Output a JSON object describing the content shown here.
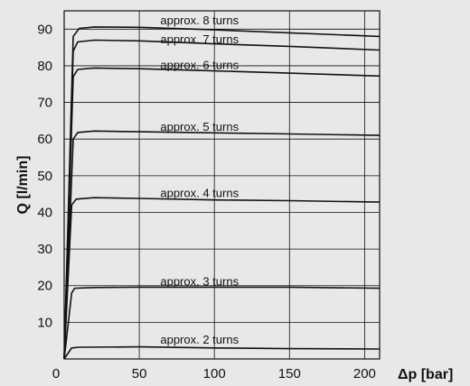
{
  "chart_data": {
    "type": "line",
    "xlabel": "Δp [bar]",
    "ylabel": "Q [l/min]",
    "xlim": [
      0,
      210
    ],
    "ylim": [
      0,
      95
    ],
    "x_ticks": [
      0,
      50,
      100,
      150,
      200
    ],
    "y_ticks": [
      10,
      20,
      30,
      40,
      50,
      60,
      70,
      80,
      90
    ],
    "grid": true,
    "series": [
      {
        "name": "approx. 2 turns",
        "points": [
          [
            0,
            0
          ],
          [
            5,
            3
          ],
          [
            10,
            3.2
          ],
          [
            50,
            3.3
          ],
          [
            100,
            3
          ],
          [
            150,
            2.8
          ],
          [
            210,
            2.7
          ]
        ]
      },
      {
        "name": "approx. 3 turns",
        "points": [
          [
            0,
            0
          ],
          [
            5,
            18
          ],
          [
            7,
            19.3
          ],
          [
            20,
            19.5
          ],
          [
            50,
            19.6
          ],
          [
            100,
            19.6
          ],
          [
            150,
            19.6
          ],
          [
            210,
            19.3
          ]
        ]
      },
      {
        "name": "approx. 4 turns",
        "points": [
          [
            0,
            0
          ],
          [
            5,
            42
          ],
          [
            8,
            43.6
          ],
          [
            20,
            44
          ],
          [
            50,
            43.8
          ],
          [
            100,
            43.4
          ],
          [
            150,
            43.2
          ],
          [
            210,
            42.8
          ]
        ]
      },
      {
        "name": "approx. 5 turns",
        "points": [
          [
            0,
            0
          ],
          [
            6,
            60
          ],
          [
            9,
            61.8
          ],
          [
            20,
            62.2
          ],
          [
            50,
            62
          ],
          [
            100,
            61.7
          ],
          [
            150,
            61.4
          ],
          [
            210,
            61
          ]
        ]
      },
      {
        "name": "approx. 6 turns",
        "points": [
          [
            0,
            0
          ],
          [
            6,
            77
          ],
          [
            9,
            79
          ],
          [
            20,
            79.4
          ],
          [
            50,
            79.2
          ],
          [
            100,
            78.6
          ],
          [
            150,
            78
          ],
          [
            210,
            77.2
          ]
        ]
      },
      {
        "name": "approx. 7 turns",
        "points": [
          [
            0,
            0
          ],
          [
            6,
            84
          ],
          [
            9,
            86.5
          ],
          [
            20,
            87
          ],
          [
            50,
            86.8
          ],
          [
            100,
            86
          ],
          [
            150,
            85.3
          ],
          [
            210,
            84.3
          ]
        ]
      },
      {
        "name": "approx. 8 turns",
        "points": [
          [
            0,
            0
          ],
          [
            6,
            88
          ],
          [
            10,
            90.2
          ],
          [
            20,
            90.6
          ],
          [
            50,
            90.5
          ],
          [
            100,
            89.8
          ],
          [
            150,
            89
          ],
          [
            210,
            88
          ]
        ]
      }
    ],
    "annotations": [
      {
        "text": "approx. 8 turns",
        "x": 64,
        "y": 91.3
      },
      {
        "text": "approx. 7 turns",
        "x": 64,
        "y": 86.1
      },
      {
        "text": "approx. 6 turns",
        "x": 64,
        "y": 79.1
      },
      {
        "text": "approx. 5 turns",
        "x": 64,
        "y": 62.3
      },
      {
        "text": "approx. 4 turns",
        "x": 64,
        "y": 44.2
      },
      {
        "text": "approx. 3 turns",
        "x": 64,
        "y": 20.1
      },
      {
        "text": "approx. 2 turns",
        "x": 64,
        "y": 4.2
      }
    ]
  }
}
